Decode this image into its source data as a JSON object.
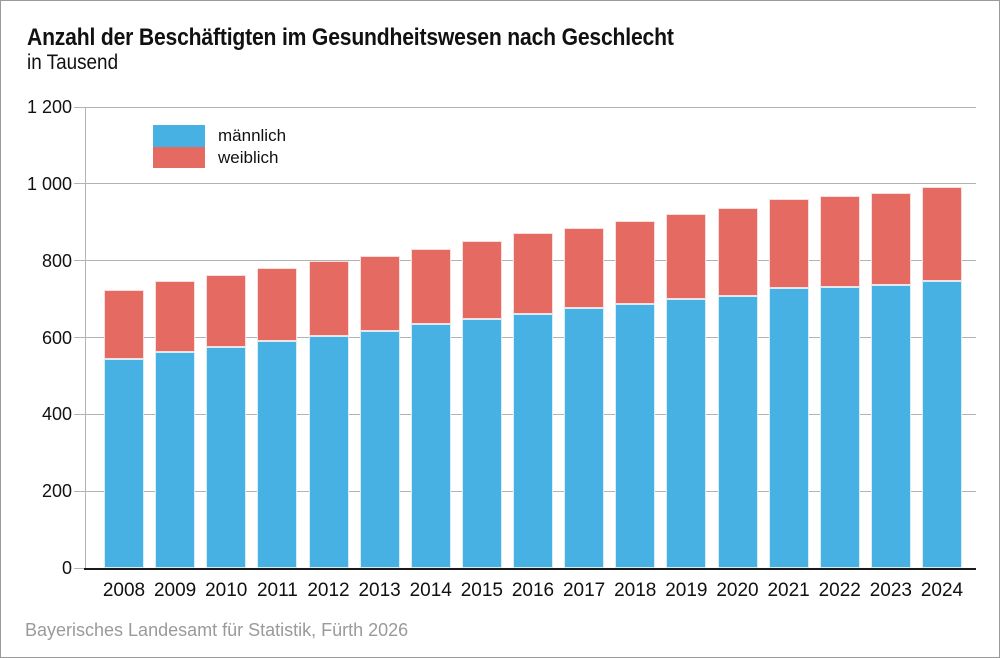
{
  "header": {
    "title": "Anzahl der Beschäftigten im Gesundheitswesen nach Geschlecht",
    "subtitle": "in Tausend"
  },
  "legend": {
    "items": [
      {
        "label": "männlich",
        "color": "#46b1e2"
      },
      {
        "label": "weiblich",
        "color": "#e56a62"
      }
    ]
  },
  "footer": {
    "source": "Bayerisches Landesamt für Statistik, Fürth 2026"
  },
  "chart_data": {
    "type": "bar",
    "stacked": true,
    "title": "Anzahl der Beschäftigten im Gesundheitswesen nach Geschlecht",
    "subtitle": "in Tausend",
    "xlabel": "",
    "ylabel": "in Tausend",
    "categories": [
      "2008",
      "2009",
      "2010",
      "2011",
      "2012",
      "2013",
      "2014",
      "2015",
      "2016",
      "2017",
      "2018",
      "2019",
      "2020",
      "2021",
      "2022",
      "2023",
      "2024"
    ],
    "series": [
      {
        "name": "männlich",
        "color": "#46b1e2",
        "values": [
          543,
          561,
          576,
          590,
          605,
          616,
          634,
          648,
          662,
          677,
          688,
          700,
          709,
          729,
          732,
          737,
          748
        ]
      },
      {
        "name": "weiblich",
        "color": "#e56a62",
        "values": [
          182,
          186,
          187,
          190,
          195,
          196,
          196,
          203,
          210,
          209,
          216,
          222,
          228,
          232,
          237,
          238,
          245
        ]
      }
    ],
    "totals": [
      725,
      747,
      763,
      780,
      800,
      812,
      830,
      851,
      872,
      886,
      904,
      922,
      937,
      961,
      969,
      975,
      993
    ],
    "ylim": [
      0,
      1200
    ],
    "ytick_step": 200,
    "ytick_labels": [
      "0",
      "200",
      "400",
      "600",
      "800",
      "1 000",
      "1 200"
    ],
    "grid": "horizontal",
    "gridline_color": "#b3b3b3",
    "legend_position": "top-left-inside"
  }
}
